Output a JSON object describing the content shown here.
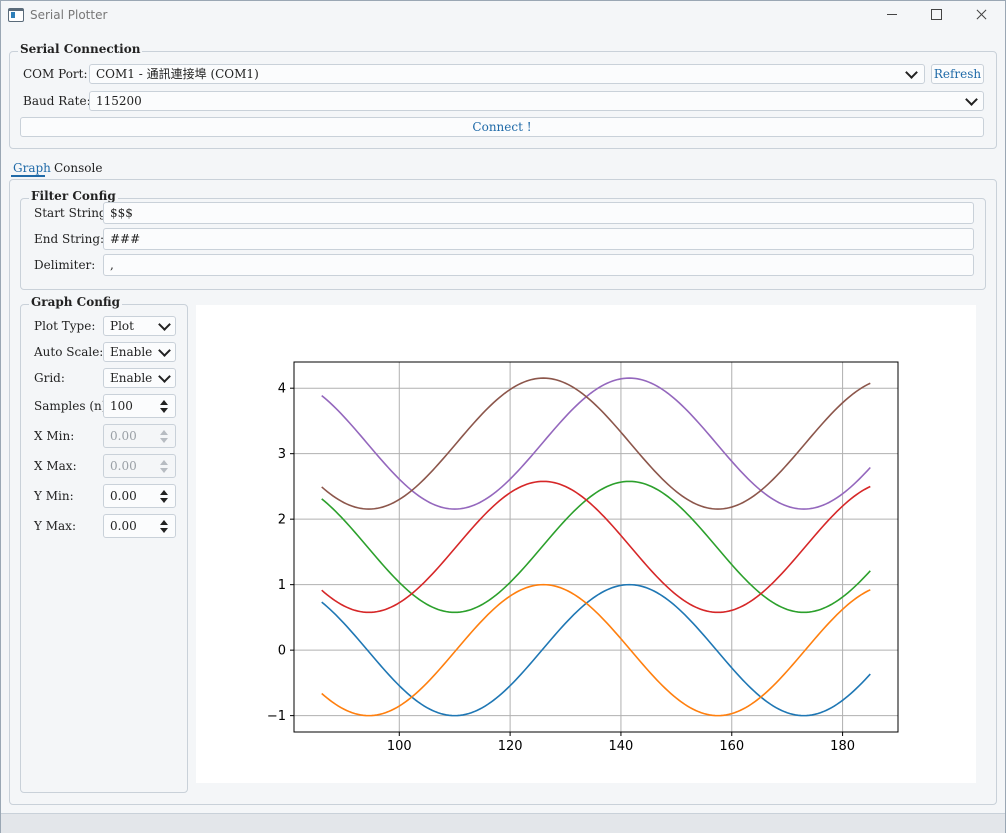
{
  "window": {
    "title": "Serial Plotter"
  },
  "serial": {
    "group_title": "Serial Connection",
    "com_label": "COM Port:",
    "com_value": "COM1 - 通訊連接埠 (COM1)",
    "refresh_label": "Refresh",
    "baud_label": "Baud Rate:",
    "baud_value": "115200",
    "connect_label": "Connect !"
  },
  "tabs": [
    {
      "label": "Graph",
      "active": true
    },
    {
      "label": "Console",
      "active": false
    }
  ],
  "filter": {
    "group_title": "Filter Config",
    "start_label": "Start String:",
    "start_value": "$$$",
    "end_label": "End String:",
    "end_value": "###",
    "delim_label": "Delimiter:",
    "delim_value": ","
  },
  "graph_config": {
    "group_title": "Graph Config",
    "plot_type_label": "Plot Type:",
    "plot_type_value": "Plot",
    "auto_scale_label": "Auto Scale:",
    "auto_scale_value": "Enable",
    "grid_label": "Grid:",
    "grid_value": "Enable",
    "samples_label": "Samples (n):",
    "samples_value": "100",
    "xmin_label": "X Min:",
    "xmin_value": "0.00",
    "xmax_label": "X Max:",
    "xmax_value": "0.00",
    "ymin_label": "Y Min:",
    "ymin_value": "0.00",
    "ymax_label": "Y Max:",
    "ymax_value": "0.00"
  },
  "colors": {
    "accent": "#1f6aa8",
    "series": [
      "#1f77b4",
      "#ff7f0e",
      "#2ca02c",
      "#d62728",
      "#9467bd",
      "#8c564b"
    ]
  },
  "chart_data": {
    "type": "line",
    "title": "",
    "xlabel": "",
    "ylabel": "",
    "xlim": [
      81,
      190
    ],
    "ylim": [
      -1.25,
      4.4
    ],
    "xticks": [
      100,
      120,
      140,
      160,
      180
    ],
    "yticks": [
      -1,
      0,
      1,
      2,
      3,
      4
    ],
    "grid": true,
    "x_range": [
      86,
      185
    ],
    "series": [
      {
        "formula": "sin",
        "offset": 0,
        "phase": 0.0,
        "x": [
          86,
          110,
          141.5,
          173,
          185
        ],
        "y": [
          0.75,
          -1,
          1,
          -1,
          -0.33
        ]
      },
      {
        "formula": "sin",
        "offset": 0,
        "phase": 1.5708,
        "x": [
          86,
          94.5,
          126,
          157.5,
          185
        ],
        "y": [
          -0.68,
          -1,
          1,
          -1,
          0.94
        ]
      },
      {
        "formula": "sin",
        "offset": 1.577,
        "phase": 0.0,
        "x": [
          86,
          110,
          141.5,
          173,
          185
        ],
        "y": [
          2.32,
          0.58,
          2.58,
          0.58,
          1.24
        ]
      },
      {
        "formula": "sin",
        "offset": 1.577,
        "phase": 1.5708,
        "x": [
          86,
          94.5,
          126,
          157.5,
          185
        ],
        "y": [
          0.9,
          0.58,
          2.58,
          0.58,
          2.51
        ]
      },
      {
        "formula": "sin",
        "offset": 3.154,
        "phase": 0.0,
        "x": [
          86,
          110,
          141.5,
          173,
          185
        ],
        "y": [
          3.9,
          2.15,
          4.15,
          2.15,
          2.82
        ]
      },
      {
        "formula": "sin",
        "offset": 3.154,
        "phase": 1.5708,
        "x": [
          86,
          94.5,
          126,
          157.5,
          185
        ],
        "y": [
          2.47,
          2.15,
          4.15,
          2.15,
          4.09
        ]
      }
    ]
  }
}
